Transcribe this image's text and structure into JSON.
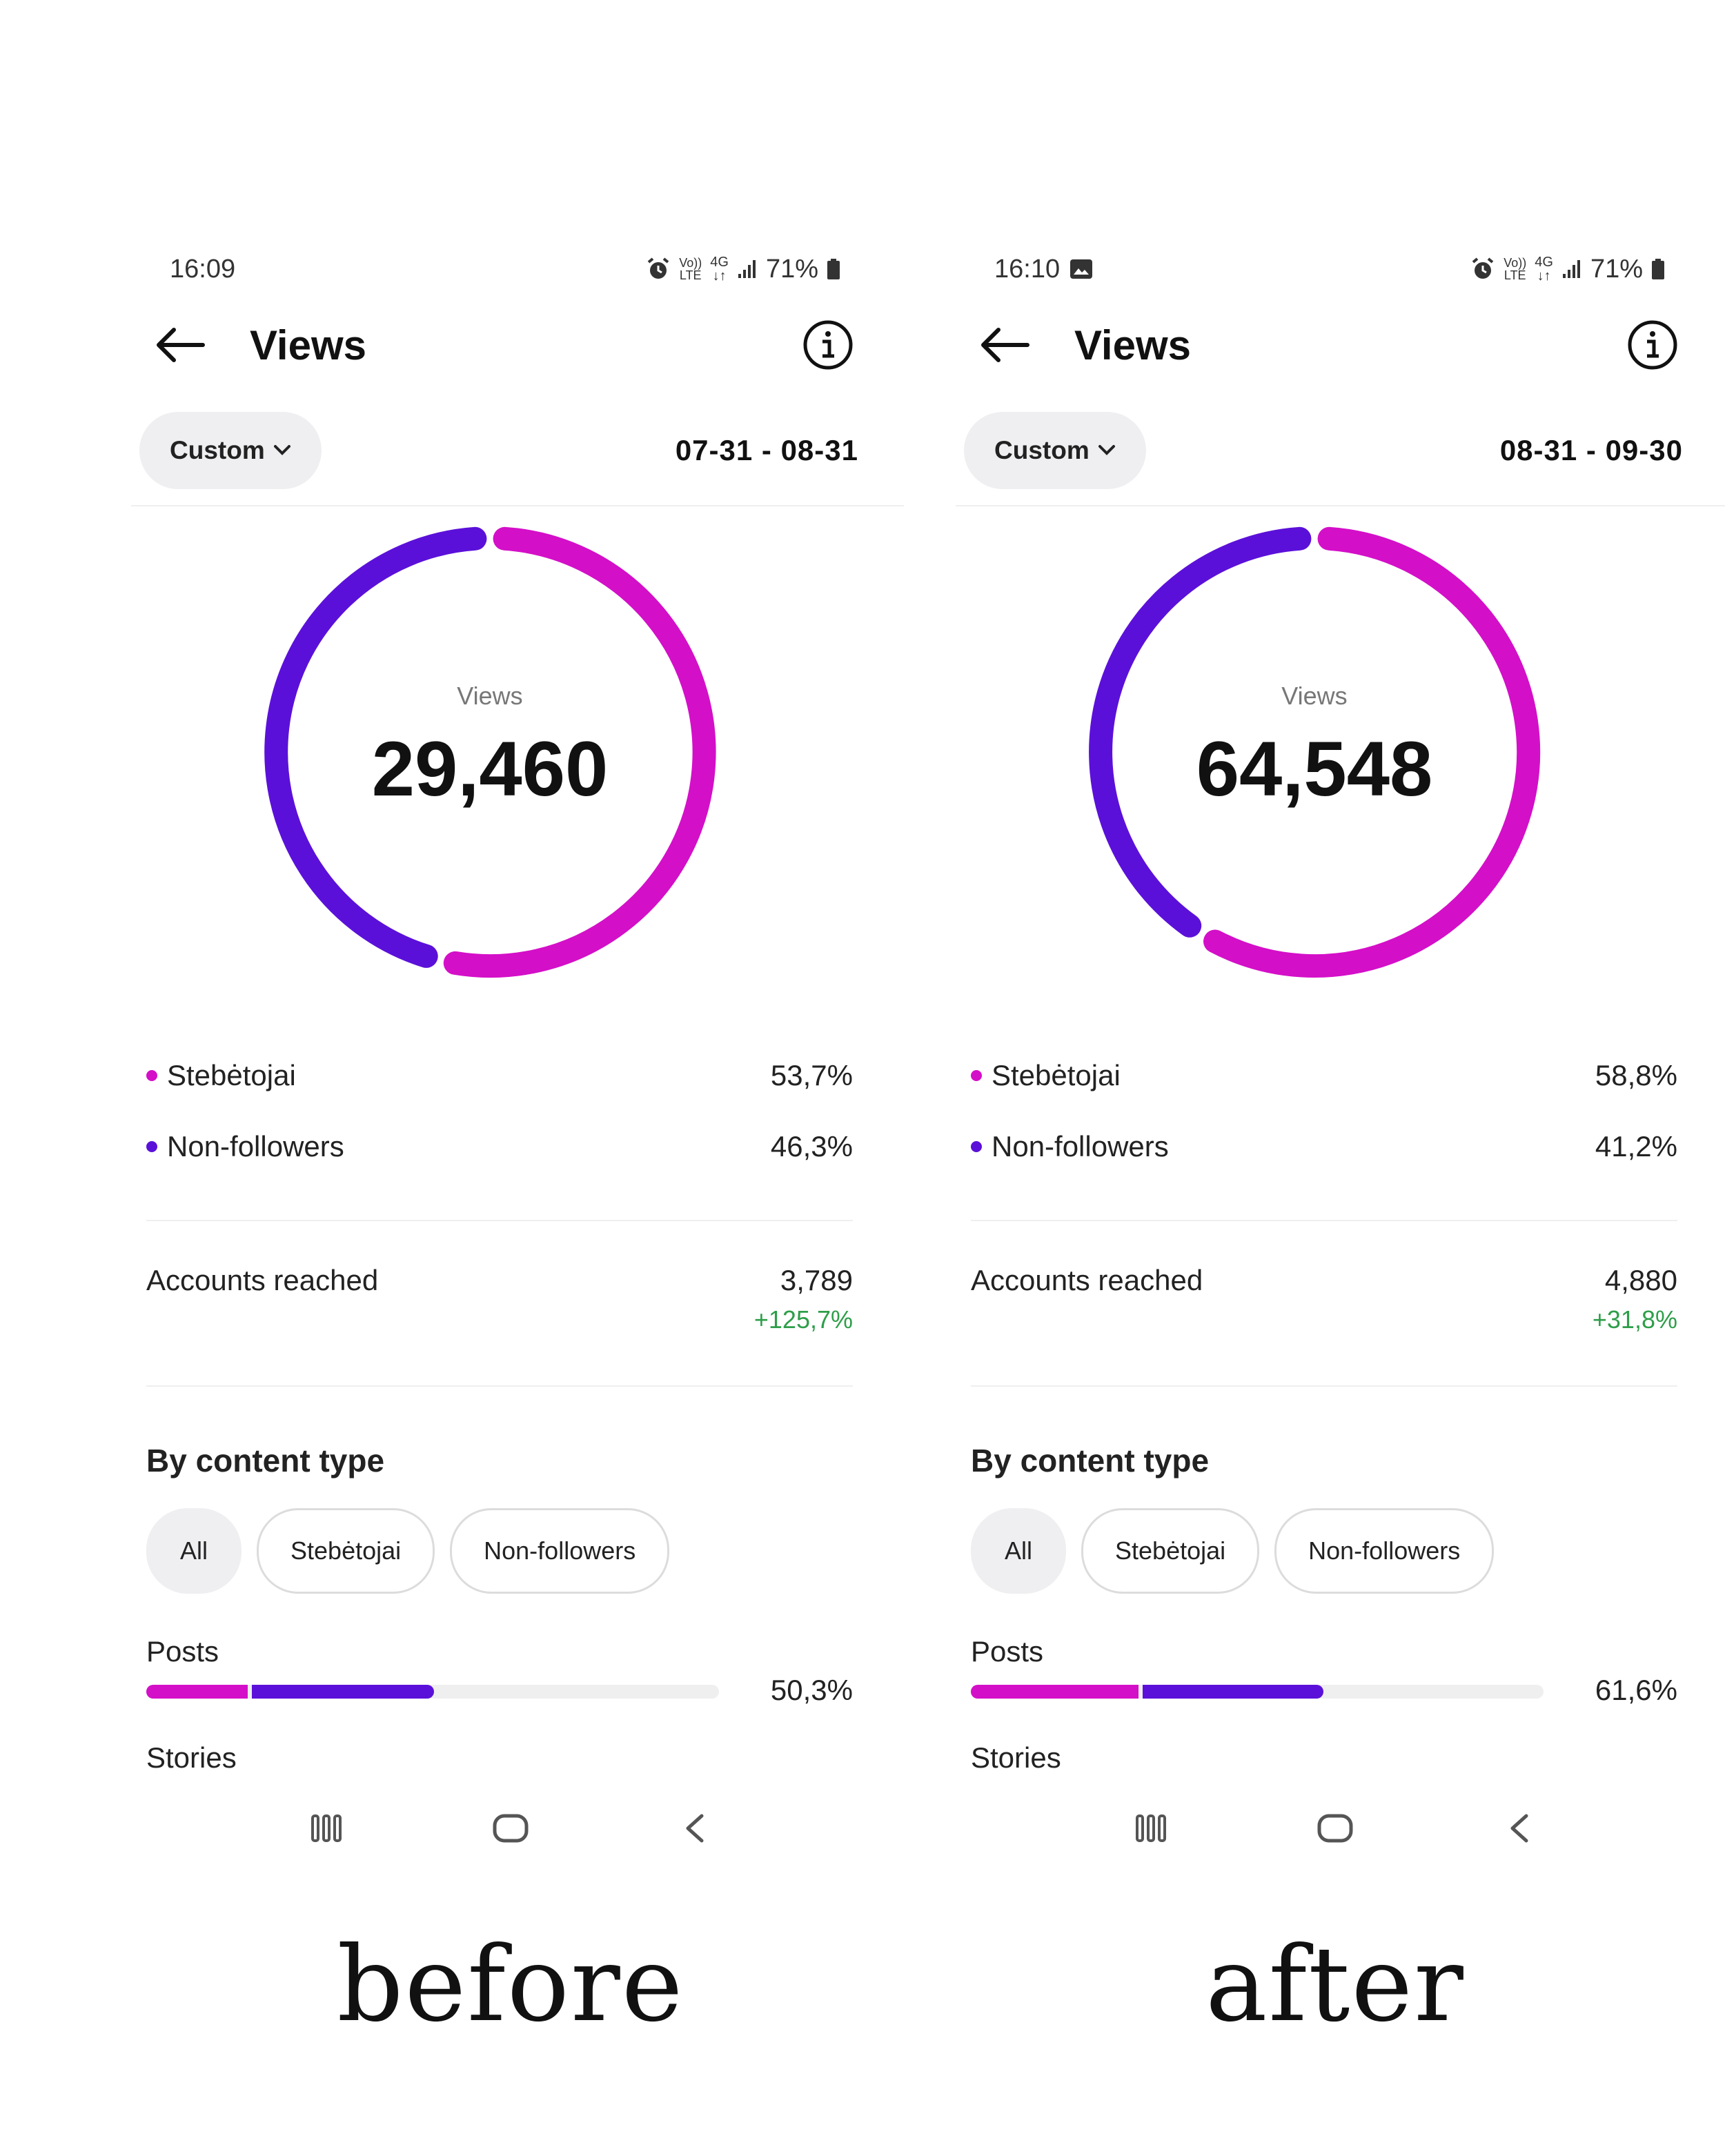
{
  "panels": [
    {
      "status": {
        "time": "16:09",
        "battery": "71%",
        "network": "4G",
        "lte": "LTE"
      },
      "header": {
        "title": "Views"
      },
      "filter": {
        "label": "Custom",
        "date_range": "07-31 - 08-31"
      },
      "ring": {
        "label": "Views",
        "total": "29,460"
      },
      "legend": [
        {
          "name": "Stebėtojai",
          "value": "53,7%",
          "color": "#d40fc8"
        },
        {
          "name": "Non-followers",
          "value": "46,3%",
          "color": "#5b10d9"
        }
      ],
      "accounts": {
        "label": "Accounts reached",
        "value": "3,789",
        "change": "+125,7%"
      },
      "content": {
        "title": "By content type",
        "chips": [
          "All",
          "Stebėtojai",
          "Non-followers"
        ],
        "posts_label": "Posts",
        "posts_value": "50,3%",
        "posts_followers_pct": 0.181,
        "posts_nonfollowers_pct": 0.322,
        "stories_label": "Stories"
      },
      "caption": "before"
    },
    {
      "status": {
        "time": "16:10",
        "battery": "71%",
        "network": "4G",
        "lte": "LTE"
      },
      "header": {
        "title": "Views"
      },
      "filter": {
        "label": "Custom",
        "date_range": "08-31 - 09-30"
      },
      "ring": {
        "label": "Views",
        "total": "64,548"
      },
      "legend": [
        {
          "name": "Stebėtojai",
          "value": "58,8%",
          "color": "#d40fc8"
        },
        {
          "name": "Non-followers",
          "value": "41,2%",
          "color": "#5b10d9"
        }
      ],
      "accounts": {
        "label": "Accounts reached",
        "value": "4,880",
        "change": "+31,8%"
      },
      "content": {
        "title": "By content type",
        "chips": [
          "All",
          "Stebėtojai",
          "Non-followers"
        ],
        "posts_label": "Posts",
        "posts_value": "61,6%",
        "posts_followers_pct": 0.296,
        "posts_nonfollowers_pct": 0.32,
        "stories_label": "Stories"
      },
      "caption": "after"
    }
  ],
  "colors": {
    "followers": "#d40fc8",
    "non_followers": "#5b10d9",
    "positive": "#2e9e49"
  },
  "icons": [
    "alarm-icon",
    "gallery-icon",
    "signal-icon",
    "battery-icon",
    "back-arrow-icon",
    "info-icon",
    "chevron-down-icon",
    "recents-icon",
    "home-icon",
    "nav-back-icon"
  ]
}
